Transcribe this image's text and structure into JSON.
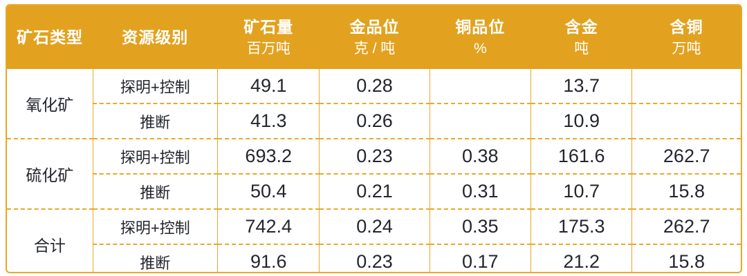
{
  "colors": {
    "header_bg": "#E2A21F",
    "border": "#E9A826",
    "header_text": "#FFFFFF",
    "body_text": "#23262D",
    "page_bg": "#FFFFFF"
  },
  "table": {
    "columns": [
      {
        "label": "矿石类型",
        "unit": ""
      },
      {
        "label": "资源级别",
        "unit": ""
      },
      {
        "label": "矿石量",
        "unit": "百万吨"
      },
      {
        "label": "金品位",
        "unit": "克 / 吨"
      },
      {
        "label": "铜品位",
        "unit": "%"
      },
      {
        "label": "含金",
        "unit": "吨"
      },
      {
        "label": "含铜",
        "unit": "万吨"
      }
    ],
    "groups": [
      {
        "type": "氧化矿",
        "rows": [
          {
            "level": "探明+控制",
            "values": [
              "49.1",
              "0.28",
              "",
              "13.7",
              ""
            ]
          },
          {
            "level": "推断",
            "values": [
              "41.3",
              "0.26",
              "",
              "10.9",
              ""
            ]
          }
        ]
      },
      {
        "type": "硫化矿",
        "rows": [
          {
            "level": "探明+控制",
            "values": [
              "693.2",
              "0.23",
              "0.38",
              "161.6",
              "262.7"
            ]
          },
          {
            "level": "推断",
            "values": [
              "50.4",
              "0.21",
              "0.31",
              "10.7",
              "15.8"
            ]
          }
        ]
      },
      {
        "type": "合计",
        "rows": [
          {
            "level": "探明+控制",
            "values": [
              "742.4",
              "0.24",
              "0.35",
              "175.3",
              "262.7"
            ]
          },
          {
            "level": "推断",
            "values": [
              "91.6",
              "0.23",
              "0.17",
              "21.2",
              "15.8"
            ]
          }
        ]
      }
    ]
  },
  "chart_data": {
    "type": "table",
    "columns": [
      "矿石类型",
      "资源级别",
      "矿石量 (百万吨)",
      "金品位 (克/吨)",
      "铜品位 (%)",
      "含金 (吨)",
      "含铜 (万吨)"
    ],
    "rows": [
      [
        "氧化矿",
        "探明+控制",
        49.1,
        0.28,
        null,
        13.7,
        null
      ],
      [
        "氧化矿",
        "推断",
        41.3,
        0.26,
        null,
        10.9,
        null
      ],
      [
        "硫化矿",
        "探明+控制",
        693.2,
        0.23,
        0.38,
        161.6,
        262.7
      ],
      [
        "硫化矿",
        "推断",
        50.4,
        0.21,
        0.31,
        10.7,
        15.8
      ],
      [
        "合计",
        "探明+控制",
        742.4,
        0.24,
        0.35,
        175.3,
        262.7
      ],
      [
        "合计",
        "推断",
        91.6,
        0.23,
        0.17,
        21.2,
        15.8
      ]
    ]
  }
}
